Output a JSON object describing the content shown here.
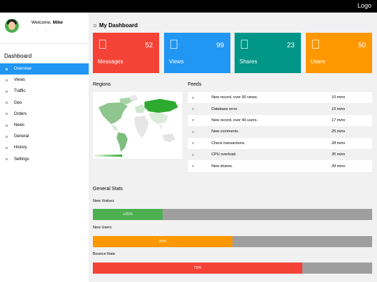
{
  "topbar": {
    "logo": "Logo"
  },
  "user": {
    "welcome_prefix": "Welcome, ",
    "name": "Mike",
    "icons": [
      "envelope-icon",
      "user-icon",
      "gear-icon"
    ]
  },
  "sidebar": {
    "title": "Dashboard",
    "items": [
      {
        "label": "Overview",
        "icon": "users-icon",
        "active": true
      },
      {
        "label": "Views",
        "icon": "eye-icon"
      },
      {
        "label": "Traffic",
        "icon": "users-icon"
      },
      {
        "label": "Geo",
        "icon": "bullseye-icon"
      },
      {
        "label": "Orders",
        "icon": "diamond-icon"
      },
      {
        "label": "News",
        "icon": "bell-icon"
      },
      {
        "label": "General",
        "icon": "bank-icon"
      },
      {
        "label": "History",
        "icon": "history-icon"
      },
      {
        "label": "Settings",
        "icon": "cog-icon"
      }
    ]
  },
  "main": {
    "title": "My Dashboard",
    "cards": [
      {
        "label": "Messages",
        "value": "52",
        "color": "#f44336",
        "icon": "comment-icon"
      },
      {
        "label": "Views",
        "value": "99",
        "color": "#2196f3",
        "icon": "eye-icon"
      },
      {
        "label": "Shares",
        "value": "23",
        "color": "#009688",
        "icon": "share-icon"
      },
      {
        "label": "Users",
        "value": "50",
        "color": "#ff9800",
        "icon": "users-icon"
      }
    ],
    "regions_title": "Regions",
    "feeds_title": "Feeds",
    "feeds": [
      {
        "text": "New record, over 90 views.",
        "time": "10 mins",
        "icon": "user-icon"
      },
      {
        "text": "Database error.",
        "time": "15 mins",
        "icon": "bell-icon"
      },
      {
        "text": "New record, over 40 users.",
        "time": "17 mins",
        "icon": "users-icon"
      },
      {
        "text": "New comments.",
        "time": "25 mins",
        "icon": "comment-icon"
      },
      {
        "text": "Check transactions.",
        "time": "28 mins",
        "icon": "bookmark-icon"
      },
      {
        "text": "CPU overload.",
        "time": "35 mins",
        "icon": "laptop-icon"
      },
      {
        "text": "New shares.",
        "time": "39 mins",
        "icon": "share-icon"
      }
    ],
    "stats_title": "General Stats",
    "stats": [
      {
        "label": "New Visitors",
        "percent": 25,
        "text": "+25%",
        "color": "#4caf50"
      },
      {
        "label": "New Users",
        "percent": 50,
        "text": "50%",
        "color": "#ff9800"
      },
      {
        "label": "Bounce Rate",
        "percent": 75,
        "text": "75%",
        "color": "#f44336"
      }
    ]
  }
}
